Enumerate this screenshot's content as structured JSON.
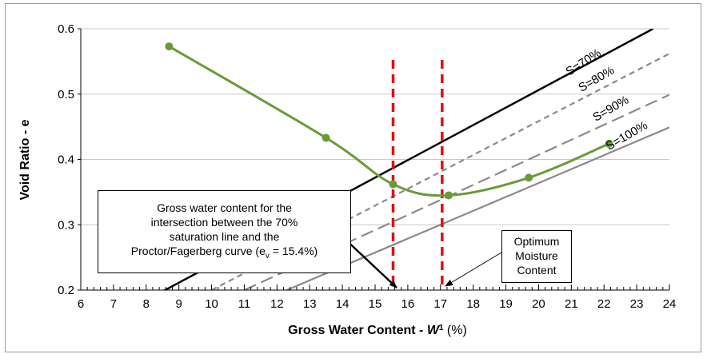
{
  "chart_data": {
    "type": "line",
    "xlabel_main": "Gross Water Content - ",
    "xlabel_italic": "W",
    "xlabel_sup": "1",
    "xlabel_unit": " (%)",
    "ylabel": "Void Ratio - e",
    "xlim": [
      6,
      24
    ],
    "ylim": [
      0.2,
      0.6
    ],
    "xticks": [
      "6",
      "7",
      "8",
      "9",
      "10",
      "11",
      "12",
      "13",
      "14",
      "15",
      "16",
      "17",
      "18",
      "19",
      "20",
      "21",
      "22",
      "23",
      "24"
    ],
    "yticks": [
      "0.2",
      "0.3",
      "0.4",
      "0.5",
      "0.6"
    ],
    "grid": "horizontal",
    "proctor_curve": {
      "color": "#6a9a3a",
      "points": [
        {
          "x": 8.7,
          "y": 0.573
        },
        {
          "x": 13.5,
          "y": 0.433
        },
        {
          "x": 15.55,
          "y": 0.362
        },
        {
          "x": 17.25,
          "y": 0.345
        },
        {
          "x": 19.7,
          "y": 0.372
        },
        {
          "x": 22.15,
          "y": 0.424
        }
      ]
    },
    "saturation_lines": [
      {
        "label": "S=70%",
        "color": "#000000",
        "style": "solid",
        "x": [
          8.0,
          23.5
        ],
        "y": [
          0.1845,
          0.6
        ]
      },
      {
        "label": "S=80%",
        "color": "#8a8a8a",
        "style": "short-dash",
        "x": [
          10.0,
          24.0
        ],
        "y": [
          0.2,
          0.562
        ]
      },
      {
        "label": "S=90%",
        "color": "#8a8a8a",
        "style": "long-dash",
        "x": [
          11.0,
          24.0
        ],
        "y": [
          0.2,
          0.499
        ]
      },
      {
        "label": "S=100%",
        "color": "#8a8a8a",
        "style": "solid",
        "x": [
          12.3,
          24.0
        ],
        "y": [
          0.2,
          0.449
        ]
      }
    ],
    "vertical_markers": [
      {
        "x": 15.55,
        "color": "#e01010"
      },
      {
        "x": 17.05,
        "color": "#e01010"
      }
    ],
    "annotations": [
      {
        "id": "intersection",
        "lines": [
          "Gross water content for the",
          "intersection between the 70%",
          "saturation line and the"
        ],
        "last_prefix": "Proctor/Fagerberg curve (e",
        "last_sub": "v",
        "last_suffix": " = 15.4%)"
      },
      {
        "id": "optimum",
        "lines": [
          "Optimum",
          "Moisture",
          "Content"
        ]
      }
    ]
  }
}
